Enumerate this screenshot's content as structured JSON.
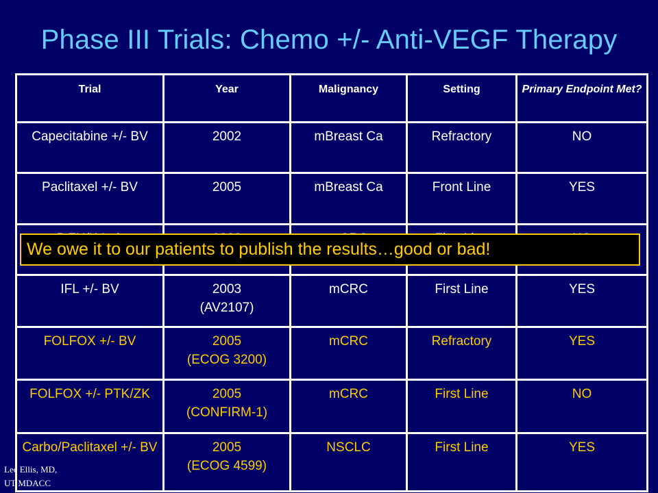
{
  "title": "Phase III Trials: Chemo +/- Anti-VEGF Therapy",
  "table": {
    "headers": [
      "Trial",
      "Year",
      "Malignancy",
      "Setting",
      "Primary Endpoint Met?"
    ],
    "rows": [
      {
        "trial": "Capecitabine +/- BV",
        "year": "2002",
        "year_detail": "",
        "malignancy": "mBreast Ca",
        "setting": "Refractory",
        "endpoint": "NO",
        "highlight": false
      },
      {
        "trial": "Paclitaxel +/- BV",
        "year": "2005",
        "year_detail": "",
        "malignancy": "mBreast Ca",
        "setting": "Front Line",
        "endpoint": "YES",
        "highlight": false
      },
      {
        "trial": "5-FU/LV +/-",
        "year": "2003",
        "year_detail": "",
        "malignancy": "mCRC",
        "setting": "First Line",
        "endpoint": "NO",
        "highlight": false
      },
      {
        "trial": "IFL +/- BV",
        "year": "2003",
        "year_detail": "(AV2107)",
        "malignancy": "mCRC",
        "setting": "First Line",
        "endpoint": "YES",
        "highlight": false
      },
      {
        "trial": "FOLFOX +/- BV",
        "year": "2005",
        "year_detail": "(ECOG 3200)",
        "malignancy": "mCRC",
        "setting": "Refractory",
        "endpoint": "YES",
        "highlight": true
      },
      {
        "trial": "FOLFOX +/- PTK/ZK",
        "year": "2005",
        "year_detail": "(CONFIRM-1)",
        "malignancy": "mCRC",
        "setting": "First Line",
        "endpoint": "NO",
        "highlight": true
      },
      {
        "trial": "Carbo/Paclitaxel +/- BV",
        "year": "2005",
        "year_detail": "(ECOG 4599)",
        "malignancy": "NSCLC",
        "setting": "First Line",
        "endpoint": "YES",
        "highlight": true
      }
    ]
  },
  "banner": "We owe it to our patients to publish the results…good or bad!",
  "credit": {
    "line1": "Lee Ellis, MD,",
    "line2": "UT MDACC"
  },
  "colors": {
    "background": "#000066",
    "title": "#66ccff",
    "highlight_text": "#ffcc00",
    "banner_bg": "#000000"
  }
}
